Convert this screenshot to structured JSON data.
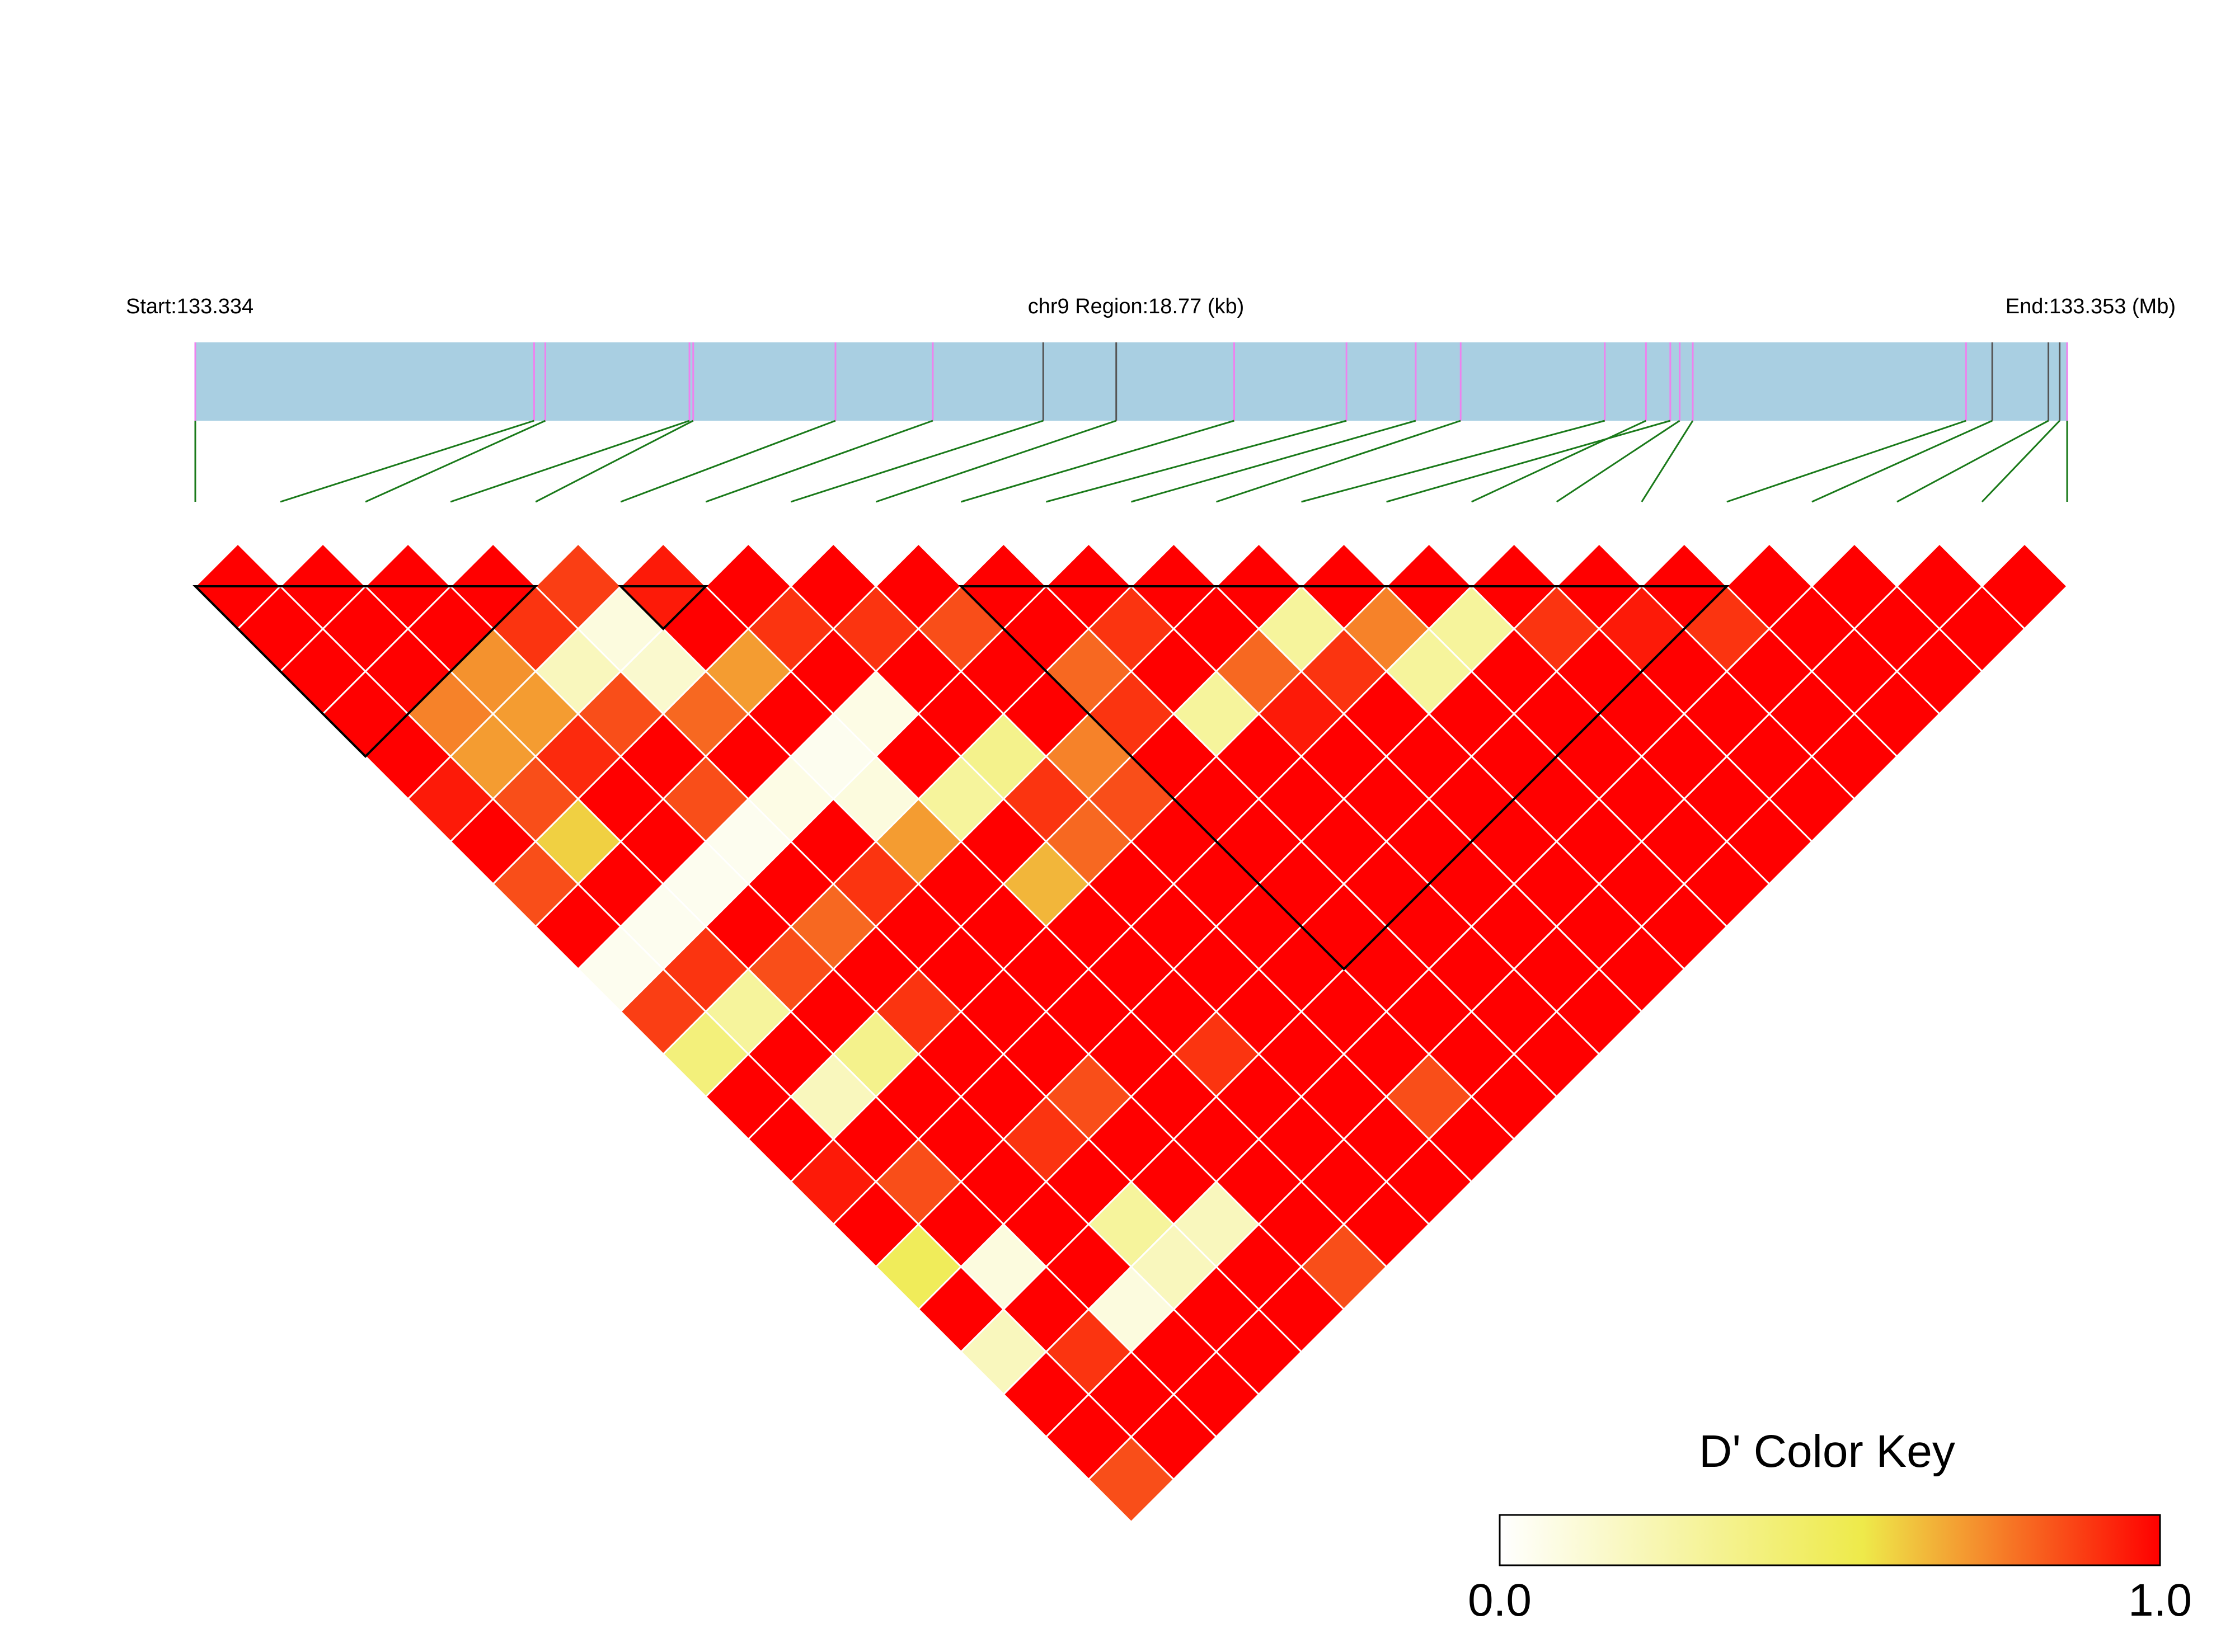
{
  "chart_data": {
    "type": "heatmap",
    "header": {
      "start_label": "Start:133.334",
      "region_label": "chr9 Region:18.77 (kb)",
      "end_label": "End:133.353 (Mb)"
    },
    "region": {
      "chromosome": "chr9",
      "start_mb": 133.334,
      "end_mb": 133.353,
      "length_kb": 18.77
    },
    "snp_count": 23,
    "snp_positions_fraction": [
      0.0,
      0.181,
      0.187,
      0.264,
      0.266,
      0.342,
      0.394,
      0.453,
      0.492,
      0.555,
      0.615,
      0.652,
      0.676,
      0.753,
      0.788,
      0.775,
      0.793,
      0.8,
      0.946,
      0.96,
      0.99,
      0.996,
      1.0
    ],
    "snp_marker_colors": [
      "#ee82ee",
      "#ee82ee",
      "#ee82ee",
      "#ee82ee",
      "#ee82ee",
      "#ee82ee",
      "#ee82ee",
      "#555555",
      "#555555",
      "#ee82ee",
      "#ee82ee",
      "#ee82ee",
      "#ee82ee",
      "#ee82ee",
      "#ee82ee",
      "#ee82ee",
      "#ee82ee",
      "#ee82ee",
      "#ee82ee",
      "#555555",
      "#555555",
      "#555555",
      "#ee82ee"
    ],
    "dprime": [
      [
        1,
        1,
        1,
        1,
        1,
        0.95,
        1,
        0.85,
        1,
        0.05,
        0.88,
        0.4,
        1,
        1,
        0.95,
        1,
        0.5,
        1,
        0.2,
        1,
        1,
        0.85
      ],
      [
        1,
        1,
        1,
        0.75,
        0.7,
        0.85,
        0.6,
        1,
        0.05,
        0.9,
        0.3,
        1,
        0.2,
        1,
        0.85,
        1,
        0.1,
        1,
        0.9,
        1,
        1
      ],
      [
        1,
        1,
        0.72,
        0.7,
        0.92,
        1,
        1,
        0.05,
        1,
        0.85,
        1,
        0.35,
        1,
        1,
        1,
        1,
        1,
        0.1,
        1,
        1
      ],
      [
        1,
        0.9,
        0.2,
        0.85,
        1,
        0.85,
        0.05,
        1,
        0.8,
        1,
        0.9,
        1,
        1,
        0.9,
        1,
        0.3,
        0.2,
        1,
        1
      ],
      [
        0.88,
        0.1,
        0.15,
        0.8,
        1,
        0.08,
        1,
        0.9,
        1,
        1,
        1,
        1,
        0.85,
        1,
        1,
        0.2,
        1,
        1
      ],
      [
        0.95,
        1,
        0.7,
        1,
        0.05,
        0.1,
        0.7,
        1,
        1,
        1,
        1,
        1,
        1,
        1,
        1,
        1,
        0.85
      ],
      [
        1,
        0.9,
        1,
        0.08,
        1,
        0.3,
        1,
        0.65,
        1,
        1,
        1,
        0.9,
        1,
        1,
        1,
        1
      ],
      [
        1,
        0.9,
        1,
        1,
        0.35,
        0.9,
        0.8,
        1,
        1,
        1,
        1,
        1,
        1,
        1,
        1
      ],
      [
        1,
        0.85,
        1,
        1,
        0.75,
        0.85,
        1,
        1,
        1,
        1,
        1,
        1,
        0.85,
        1
      ],
      [
        1,
        1,
        0.8,
        0.9,
        1,
        1,
        1,
        1,
        1,
        1,
        1,
        1,
        1
      ],
      [
        1,
        0.9,
        1,
        0.3,
        1,
        1,
        1,
        1,
        1,
        1,
        1,
        1
      ],
      [
        1,
        1,
        0.8,
        0.95,
        1,
        1,
        1,
        1,
        1,
        1,
        1
      ],
      [
        1,
        0.3,
        0.9,
        1,
        1,
        1,
        1,
        1,
        1,
        1
      ],
      [
        1,
        0.75,
        0.3,
        1,
        1,
        1,
        1,
        1,
        1
      ],
      [
        1,
        0.3,
        1,
        1,
        1,
        1,
        1,
        1
      ],
      [
        1,
        0.9,
        1,
        1,
        1,
        1,
        1
      ],
      [
        1,
        0.95,
        1,
        1,
        1,
        1
      ],
      [
        1,
        0.9,
        1,
        1,
        1
      ],
      [
        1,
        1,
        1,
        1
      ],
      [
        1,
        1,
        1
      ],
      [
        1,
        1
      ],
      [
        1
      ]
    ],
    "blocks": [
      [
        0,
        4
      ],
      [
        5,
        6
      ],
      [
        9,
        18
      ]
    ],
    "color_key": {
      "title": "D' Color Key",
      "min_label": "0.0",
      "max_label": "1.0",
      "colors": [
        "#ffffff",
        "#eeea4a",
        "#ff0000"
      ]
    },
    "grid": true
  }
}
